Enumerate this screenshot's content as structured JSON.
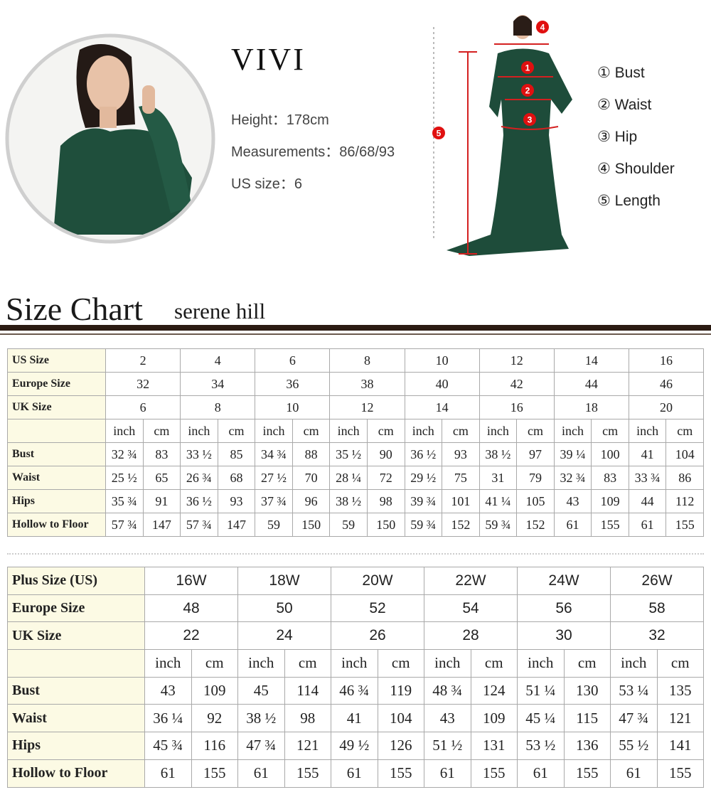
{
  "model": {
    "name": "VIVI",
    "stats": [
      "Height：178cm",
      "Measurements：86/68/93",
      "US size：6"
    ]
  },
  "diagram": {
    "markers": [
      "1",
      "2",
      "3",
      "4",
      "5"
    ],
    "legend": [
      "① Bust",
      "② Waist",
      "③ Hip",
      "④ Shoulder",
      "⑤ Length"
    ]
  },
  "header": {
    "title": "Size Chart",
    "subtitle": "serene hill"
  },
  "tables": [
    {
      "size_rows": [
        {
          "label": "US Size",
          "values": [
            "2",
            "4",
            "6",
            "8",
            "10",
            "12",
            "14",
            "16"
          ]
        },
        {
          "label": "Europe Size",
          "values": [
            "32",
            "34",
            "36",
            "38",
            "40",
            "42",
            "44",
            "46"
          ]
        },
        {
          "label": "UK Size",
          "values": [
            "6",
            "8",
            "10",
            "12",
            "14",
            "16",
            "18",
            "20"
          ]
        }
      ],
      "units": [
        "inch",
        "cm"
      ],
      "measure_rows": [
        {
          "label": "Bust",
          "values": [
            "32 ¾",
            "83",
            "33 ½",
            "85",
            "34 ¾",
            "88",
            "35 ½",
            "90",
            "36 ½",
            "93",
            "38 ½",
            "97",
            "39 ¼",
            "100",
            "41",
            "104"
          ]
        },
        {
          "label": "Waist",
          "values": [
            "25 ½",
            "65",
            "26 ¾",
            "68",
            "27 ½",
            "70",
            "28 ¼",
            "72",
            "29 ½",
            "75",
            "31",
            "79",
            "32 ¾",
            "83",
            "33 ¾",
            "86"
          ]
        },
        {
          "label": "Hips",
          "values": [
            "35 ¾",
            "91",
            "36 ½",
            "93",
            "37 ¾",
            "96",
            "38 ½",
            "98",
            "39 ¾",
            "101",
            "41 ¼",
            "105",
            "43",
            "109",
            "44",
            "112"
          ]
        },
        {
          "label": "Hollow to Floor",
          "values": [
            "57 ¾",
            "147",
            "57 ¾",
            "147",
            "59",
            "150",
            "59",
            "150",
            "59 ¾",
            "152",
            "59 ¾",
            "152",
            "61",
            "155",
            "61",
            "155"
          ]
        }
      ]
    },
    {
      "size_rows": [
        {
          "label": "Plus Size (US)",
          "values": [
            "16W",
            "18W",
            "20W",
            "22W",
            "24W",
            "26W"
          ]
        },
        {
          "label": "Europe Size",
          "values": [
            "48",
            "50",
            "52",
            "54",
            "56",
            "58"
          ]
        },
        {
          "label": "UK Size",
          "values": [
            "22",
            "24",
            "26",
            "28",
            "30",
            "32"
          ]
        }
      ],
      "units": [
        "inch",
        "cm"
      ],
      "measure_rows": [
        {
          "label": "Bust",
          "values": [
            "43",
            "109",
            "45",
            "114",
            "46 ¾",
            "119",
            "48 ¾",
            "124",
            "51 ¼",
            "130",
            "53 ¼",
            "135"
          ]
        },
        {
          "label": "Waist",
          "values": [
            "36 ¼",
            "92",
            "38 ½",
            "98",
            "41",
            "104",
            "43",
            "109",
            "45 ¼",
            "115",
            "47 ¾",
            "121"
          ]
        },
        {
          "label": "Hips",
          "values": [
            "45 ¾",
            "116",
            "47 ¾",
            "121",
            "49 ½",
            "126",
            "51 ½",
            "131",
            "53 ½",
            "136",
            "55 ½",
            "141"
          ]
        },
        {
          "label": "Hollow to Floor",
          "values": [
            "61",
            "155",
            "61",
            "155",
            "61",
            "155",
            "61",
            "155",
            "61",
            "155",
            "61",
            "155"
          ]
        }
      ]
    }
  ]
}
